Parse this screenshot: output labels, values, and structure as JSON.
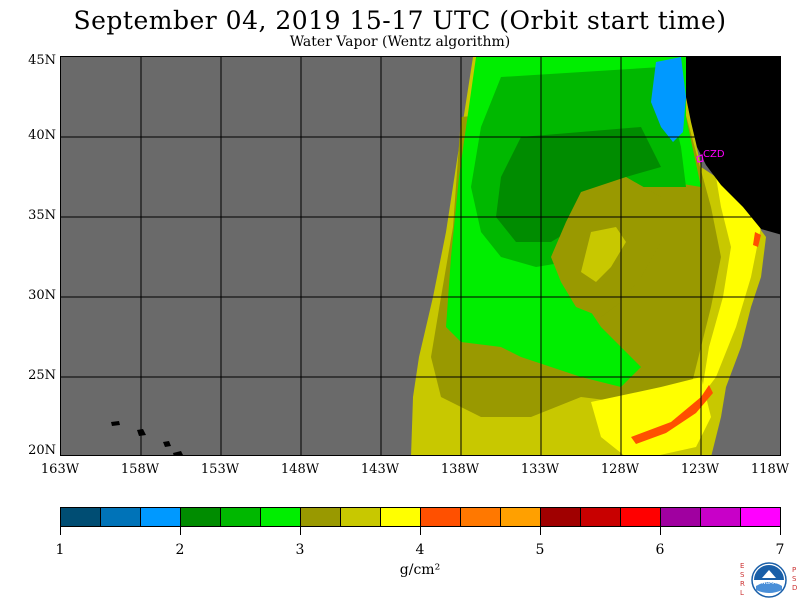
{
  "header": {
    "title": "September 04, 2019  15-17 UTC  (Orbit start time)",
    "subtitle": "Water Vapor (Wentz algorithm)"
  },
  "map": {
    "station_label": "CZD",
    "lat_ticks": [
      "45N",
      "40N",
      "35N",
      "30N",
      "25N",
      "20N"
    ],
    "lon_ticks": [
      "163W",
      "158W",
      "153W",
      "148W",
      "143W",
      "138W",
      "133W",
      "128W",
      "123W",
      "118W"
    ],
    "no_data_color": "#6a6a6a",
    "land_color": "#000000",
    "station_color": "#ff00ff"
  },
  "colorbar": {
    "colors": [
      "#004d73",
      "#0073b8",
      "#0099ff",
      "#008c00",
      "#00b800",
      "#00ee00",
      "#999900",
      "#c8c800",
      "#ffff00",
      "#ff5000",
      "#ff7800",
      "#ffa000",
      "#a00000",
      "#c80000",
      "#ff0000",
      "#a000a0",
      "#c800c8",
      "#ff00ff"
    ],
    "tick_labels": [
      "1",
      "2",
      "3",
      "4",
      "5",
      "6",
      "7"
    ],
    "units": "g/cm²"
  },
  "logo": {
    "left_letters": "ESRL",
    "right_letters": "PSD",
    "center": "NOAA"
  }
}
